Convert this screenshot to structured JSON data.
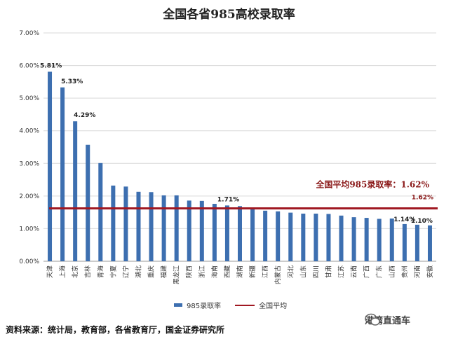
{
  "chart_data": {
    "type": "bar",
    "title": "全国各省985高校录取率",
    "categories": [
      "天津",
      "上海",
      "北京",
      "吉林",
      "青海",
      "宁夏",
      "辽宁",
      "湖北",
      "重庆",
      "福建",
      "黑龙江",
      "陕西",
      "浙江",
      "海南",
      "西藏",
      "湖南",
      "新疆",
      "江西",
      "内蒙古",
      "河北",
      "山东",
      "四川",
      "甘肃",
      "江苏",
      "云南",
      "广西",
      "广东",
      "山西",
      "贵州",
      "河南",
      "安徽"
    ],
    "values": [
      5.81,
      5.33,
      4.29,
      3.57,
      3.01,
      2.32,
      2.29,
      2.13,
      2.12,
      2.02,
      2.02,
      1.86,
      1.85,
      1.76,
      1.71,
      1.69,
      1.65,
      1.55,
      1.53,
      1.49,
      1.46,
      1.46,
      1.45,
      1.4,
      1.35,
      1.33,
      1.3,
      1.31,
      1.14,
      1.12,
      1.1
    ],
    "data_labels": {
      "0": "5.81%",
      "1": "5.33%",
      "2": "4.29%",
      "14": "1.71%",
      "28": "1.14%",
      "30": "1.10%"
    },
    "y_ticks": [
      "0.00%",
      "1.00%",
      "2.00%",
      "3.00%",
      "4.00%",
      "5.00%",
      "6.00%",
      "7.00%"
    ],
    "ylim": [
      0,
      7
    ],
    "average": 1.62,
    "average_label": "全国平均985录取率：1.62%",
    "average_value_label": "1.62%",
    "legend": {
      "bar": "985录取率",
      "line": "全国平均"
    },
    "grid": "horizontal",
    "colors": {
      "bar": "#3d6fb0",
      "average_line": "#a01822"
    }
  },
  "footer": {
    "source": "资料来源：统计局，教育部，各省教育厅，国金证券研究所",
    "watermark": "港湾直通车"
  }
}
